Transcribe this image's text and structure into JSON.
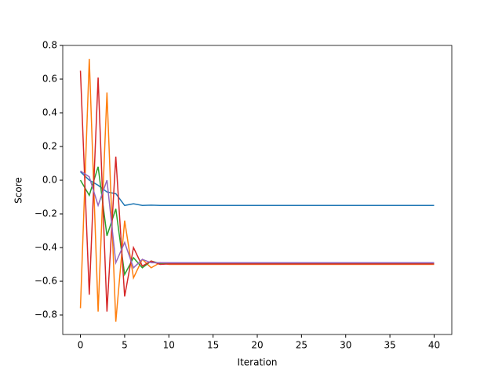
{
  "chart_data": {
    "type": "line",
    "xlabel": "Iteration",
    "ylabel": "Score",
    "x": [
      0,
      1,
      2,
      3,
      4,
      5,
      6,
      7,
      8,
      9,
      10,
      11,
      12,
      13,
      14,
      15,
      16,
      17,
      18,
      19,
      20,
      21,
      22,
      23,
      24,
      25,
      26,
      27,
      28,
      29,
      30,
      31,
      32,
      33,
      34,
      35,
      36,
      37,
      38,
      39,
      40
    ],
    "series": [
      {
        "color": "#1f77b4",
        "values": [
          0.05,
          0.0,
          -0.03,
          -0.07,
          -0.08,
          -0.15,
          -0.14,
          -0.15,
          -0.148,
          -0.15,
          -0.15,
          -0.15,
          -0.15,
          -0.15,
          -0.15,
          -0.15,
          -0.15,
          -0.15,
          -0.15,
          -0.15,
          -0.15,
          -0.15,
          -0.15,
          -0.15,
          -0.15,
          -0.15,
          -0.15,
          -0.15,
          -0.15,
          -0.15,
          -0.15,
          -0.15,
          -0.15,
          -0.15,
          -0.15,
          -0.15,
          -0.15,
          -0.15,
          -0.15,
          -0.15,
          -0.15
        ]
      },
      {
        "color": "#ff7f0e",
        "values": [
          -0.76,
          0.72,
          -0.78,
          0.52,
          -0.84,
          -0.24,
          -0.58,
          -0.47,
          -0.52,
          -0.49,
          -0.5,
          -0.5,
          -0.5,
          -0.5,
          -0.5,
          -0.5,
          -0.5,
          -0.5,
          -0.5,
          -0.5,
          -0.5,
          -0.5,
          -0.5,
          -0.5,
          -0.5,
          -0.5,
          -0.5,
          -0.5,
          -0.5,
          -0.5,
          -0.5,
          -0.5,
          -0.5,
          -0.5,
          -0.5,
          -0.5,
          -0.5,
          -0.5,
          -0.5,
          -0.5,
          -0.5
        ]
      },
      {
        "color": "#2ca02c",
        "values": [
          0.0,
          -0.09,
          0.08,
          -0.33,
          -0.17,
          -0.56,
          -0.46,
          -0.52,
          -0.48,
          -0.495,
          -0.495,
          -0.495,
          -0.495,
          -0.495,
          -0.495,
          -0.495,
          -0.495,
          -0.495,
          -0.495,
          -0.495,
          -0.495,
          -0.495,
          -0.495,
          -0.495,
          -0.495,
          -0.495,
          -0.495,
          -0.495,
          -0.495,
          -0.495,
          -0.495,
          -0.495,
          -0.495,
          -0.495,
          -0.495,
          -0.495,
          -0.495,
          -0.495,
          -0.495,
          -0.495,
          -0.495
        ]
      },
      {
        "color": "#d62728",
        "values": [
          0.65,
          -0.68,
          0.61,
          -0.78,
          0.14,
          -0.69,
          -0.4,
          -0.51,
          -0.48,
          -0.5,
          -0.497,
          -0.497,
          -0.497,
          -0.497,
          -0.497,
          -0.497,
          -0.497,
          -0.497,
          -0.497,
          -0.497,
          -0.497,
          -0.497,
          -0.497,
          -0.497,
          -0.497,
          -0.497,
          -0.497,
          -0.497,
          -0.497,
          -0.497,
          -0.497,
          -0.497,
          -0.497,
          -0.497,
          -0.497,
          -0.497,
          -0.497,
          -0.497,
          -0.497,
          -0.497,
          -0.497
        ]
      },
      {
        "color": "#9467bd",
        "values": [
          0.055,
          0.02,
          -0.15,
          0.0,
          -0.49,
          -0.37,
          -0.52,
          -0.47,
          -0.49,
          -0.49,
          -0.49,
          -0.49,
          -0.49,
          -0.49,
          -0.49,
          -0.49,
          -0.49,
          -0.49,
          -0.49,
          -0.49,
          -0.49,
          -0.49,
          -0.49,
          -0.49,
          -0.49,
          -0.49,
          -0.49,
          -0.49,
          -0.49,
          -0.49,
          -0.49,
          -0.49,
          -0.49,
          -0.49,
          -0.49,
          -0.49,
          -0.49,
          -0.49,
          -0.49,
          -0.49,
          -0.49
        ]
      }
    ],
    "xlim": [
      -2,
      42
    ],
    "xticks": [
      0,
      5,
      10,
      15,
      20,
      25,
      30,
      35,
      40
    ],
    "ylim": [
      -0.916,
      0.8
    ],
    "yticks": [
      {
        "value": -0.8,
        "label": "−0.8"
      },
      {
        "value": -0.6,
        "label": "−0.6"
      },
      {
        "value": -0.4,
        "label": "−0.4"
      },
      {
        "value": -0.2,
        "label": "−0.2"
      },
      {
        "value": 0,
        "label": "0.0"
      },
      0.2,
      0.4,
      0.6,
      0.8
    ],
    "grid": false
  }
}
